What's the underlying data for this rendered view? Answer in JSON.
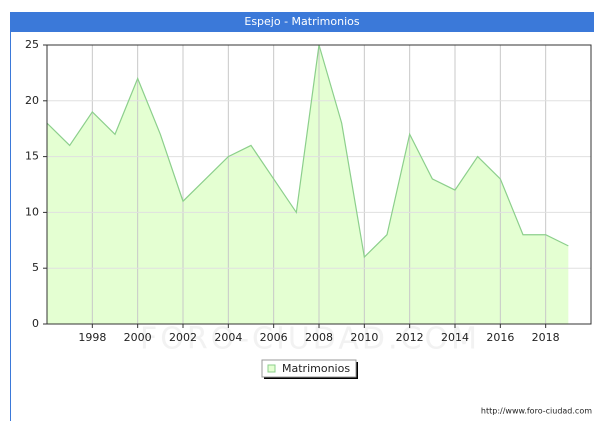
{
  "chart_data": {
    "type": "area",
    "title": "Espejo - Matrimonios",
    "x": [
      1996,
      1997,
      1998,
      1999,
      2000,
      2001,
      2002,
      2003,
      2004,
      2005,
      2006,
      2007,
      2008,
      2009,
      2010,
      2011,
      2012,
      2013,
      2014,
      2015,
      2016,
      2017,
      2018,
      2019
    ],
    "series": [
      {
        "name": "Matrimonios",
        "color": "#8ccf8c",
        "fill": "#e4ffd2",
        "values": [
          18,
          16,
          19,
          17,
          22,
          17,
          11,
          13,
          15,
          16,
          13,
          10,
          25,
          18,
          6,
          8,
          17,
          13,
          12,
          15,
          13,
          8,
          8,
          7
        ]
      }
    ],
    "xlim": [
      1996,
      2020
    ],
    "xticks": [
      1998,
      2000,
      2002,
      2004,
      2006,
      2008,
      2010,
      2012,
      2014,
      2016,
      2018
    ],
    "ylim": [
      0,
      25
    ],
    "yticks": [
      0,
      5,
      10,
      15,
      20,
      25
    ],
    "grid": true,
    "watermark": "FORO-CIUDAD.COM",
    "source": "http://www.foro-ciudad.com"
  }
}
